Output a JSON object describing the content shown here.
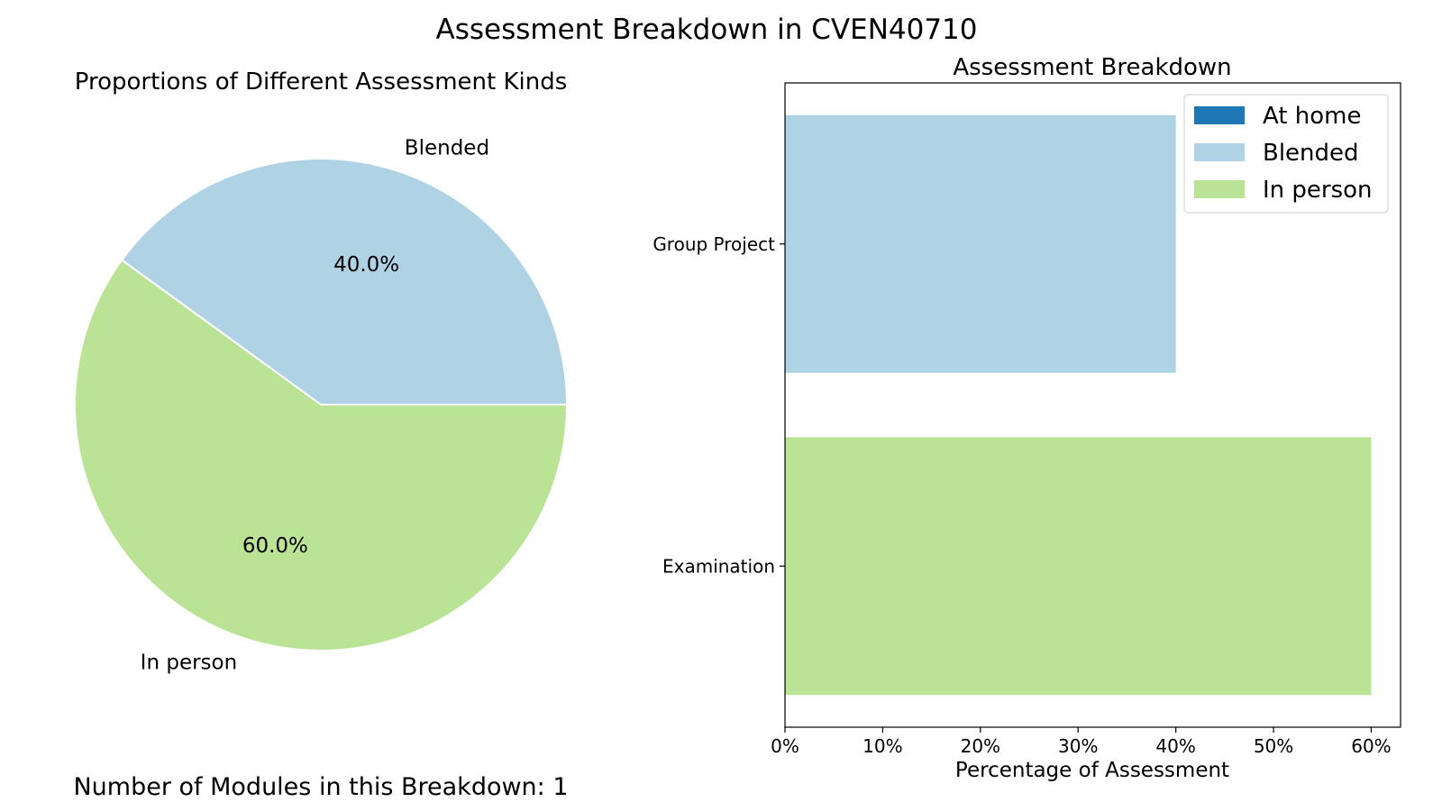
{
  "figure": {
    "suptitle": "Assessment Breakdown in CVEN40710",
    "footer": "Number of Modules in this Breakdown: 1"
  },
  "colors": {
    "at_home": "#1f77b4",
    "blended": "#afd2e5",
    "in_person": "#bbe395"
  },
  "chart_data": [
    {
      "type": "pie",
      "title": "Proportions of Different Assessment Kinds",
      "slices": [
        {
          "label": "Blended",
          "value": 40.0,
          "pct_label": "40.0%",
          "color": "#afd2e5"
        },
        {
          "label": "In person",
          "value": 60.0,
          "pct_label": "60.0%",
          "color": "#bbe395"
        }
      ],
      "start_angle_deg": 0,
      "direction": "counterclockwise"
    },
    {
      "type": "bar",
      "orientation": "horizontal",
      "title": "Assessment Breakdown",
      "xlabel": "Percentage of Assessment",
      "ylabel": "",
      "categories": [
        "Group Project",
        "Examination"
      ],
      "series": [
        {
          "name": "At home",
          "values": [
            0,
            0
          ],
          "color": "#1f77b4"
        },
        {
          "name": "Blended",
          "values": [
            40,
            0
          ],
          "color": "#afd2e5"
        },
        {
          "name": "In person",
          "values": [
            0,
            60
          ],
          "color": "#bbe395"
        }
      ],
      "xlim": [
        0,
        63
      ],
      "xticks": [
        0,
        10,
        20,
        30,
        40,
        50,
        60
      ],
      "xtick_labels": [
        "0%",
        "10%",
        "20%",
        "30%",
        "40%",
        "50%",
        "60%"
      ],
      "grid": false,
      "legend": "top-right"
    }
  ]
}
